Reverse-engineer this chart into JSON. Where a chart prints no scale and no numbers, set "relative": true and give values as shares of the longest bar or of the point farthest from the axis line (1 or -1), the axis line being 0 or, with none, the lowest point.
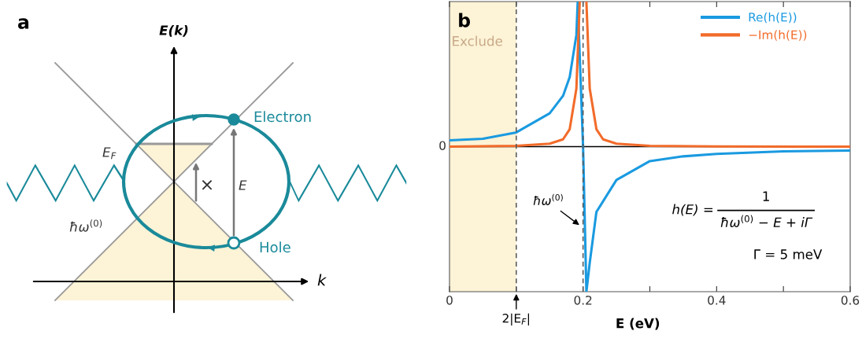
{
  "chart_data": [
    {
      "type": "other",
      "title": "a",
      "annotations": [
        "E(k)",
        "k",
        "E$_{F}$",
        "ħω$^{(0)}$",
        "Electron",
        "Hole",
        "E",
        "×"
      ]
    },
    {
      "type": "line",
      "title": "b",
      "relative": true,
      "xlabel": "E (eV)",
      "xlim": [
        0,
        0.6
      ],
      "xticks": [
        0,
        {
          "value": 0.1,
          "label": null
        },
        0.2,
        {
          "value": 0.3,
          "label": null
        },
        0.4,
        {
          "value": 0.5,
          "label": null
        },
        0.6
      ],
      "legend": "top right",
      "series": [
        {
          "name": "Re(h(E))",
          "color": "#1a9ae0",
          "x": [
            0,
            0.05,
            0.1,
            0.15,
            0.17,
            0.18,
            0.19,
            0.192,
            0.2,
            0.205,
            0.21,
            0.22,
            0.25,
            0.3,
            0.35,
            0.4,
            0.5,
            0.6
          ],
          "values": [
            0.043,
            0.054,
            0.098,
            0.23,
            0.35,
            0.48,
            0.77,
            1.0,
            0.0,
            -1.0,
            -0.8,
            -0.45,
            -0.23,
            -0.1,
            -0.067,
            -0.05,
            -0.033,
            -0.027
          ]
        },
        {
          "name": "−Im(h(E))",
          "color": "#f26b2a",
          "x": [
            0,
            0.1,
            0.15,
            0.17,
            0.18,
            0.19,
            0.195,
            0.2,
            0.205,
            0.21,
            0.22,
            0.23,
            0.25,
            0.3,
            0.4,
            0.6
          ],
          "values": [
            0.0,
            0.005,
            0.02,
            0.05,
            0.12,
            0.4,
            1.0,
            null,
            1.0,
            0.4,
            0.12,
            0.05,
            0.02,
            0.005,
            0.001,
            0.0
          ]
        }
      ],
      "bands": [
        {
          "axis": "x",
          "from": 0,
          "to": 0.1,
          "label": "Exclude",
          "color": "#fdf3d6"
        }
      ],
      "ref_lines": [
        {
          "axis": "y",
          "value": 0,
          "label": "0",
          "color": "#000000",
          "line_style": "solid"
        },
        {
          "axis": "x",
          "value": 0.1,
          "label": "2|E$_{F}$|",
          "color": "#555555",
          "line_style": "dashed"
        },
        {
          "axis": "x",
          "value": 0.2,
          "label": "ħω$^{(0)}$",
          "color": "#555555",
          "line_style": "dashed"
        }
      ],
      "annotations": [
        "h(E) =",
        "1",
        "ħω$^{(0)}$ − E + iΓ",
        "Γ = 5 meV"
      ]
    }
  ]
}
